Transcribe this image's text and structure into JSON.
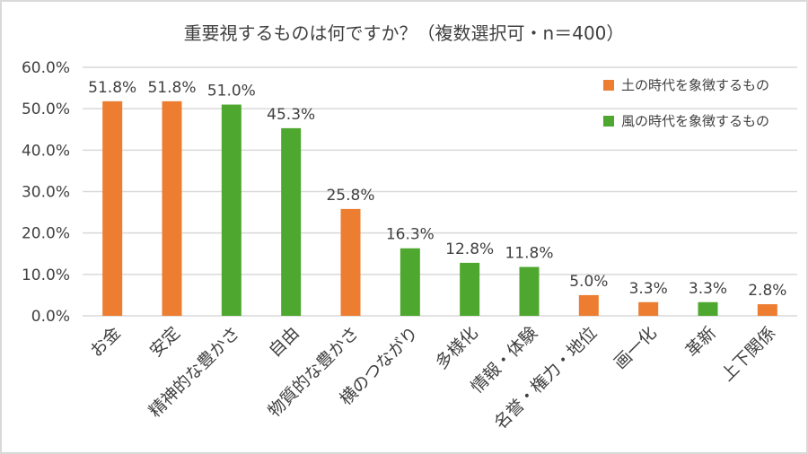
{
  "chart_data": {
    "type": "bar",
    "title": "重要視するものは何ですか？（複数選択可・n＝400）",
    "categories": [
      "お金",
      "安定",
      "精神的な豊かさ",
      "自由",
      "物質的な豊かさ",
      "横のつながり",
      "多様化",
      "情報・体験",
      "名誉・権力・地位",
      "画一化",
      "革新",
      "上下関係"
    ],
    "values": [
      51.8,
      51.8,
      51.0,
      45.3,
      25.8,
      16.3,
      12.8,
      11.8,
      5.0,
      3.3,
      3.3,
      2.8
    ],
    "value_labels": [
      "51.8%",
      "51.8%",
      "51.0%",
      "45.3%",
      "25.8%",
      "16.3%",
      "12.8%",
      "11.8%",
      "5.0%",
      "3.3%",
      "3.3%",
      "2.8%"
    ],
    "groups": [
      "earth",
      "earth",
      "wind",
      "wind",
      "earth",
      "wind",
      "wind",
      "wind",
      "earth",
      "earth",
      "wind",
      "earth"
    ],
    "legend": [
      {
        "key": "earth",
        "name": "土の時代を象徴するもの",
        "color": "#ED7D31"
      },
      {
        "key": "wind",
        "name": "風の時代を象徴するもの",
        "color": "#4EA72E"
      }
    ],
    "legend_position": "top-right",
    "ylim": [
      0,
      60
    ],
    "yticks": [
      "0.0%",
      "10.0%",
      "20.0%",
      "30.0%",
      "40.0%",
      "50.0%",
      "60.0%"
    ],
    "grid": true,
    "xlabel": "",
    "ylabel": ""
  }
}
